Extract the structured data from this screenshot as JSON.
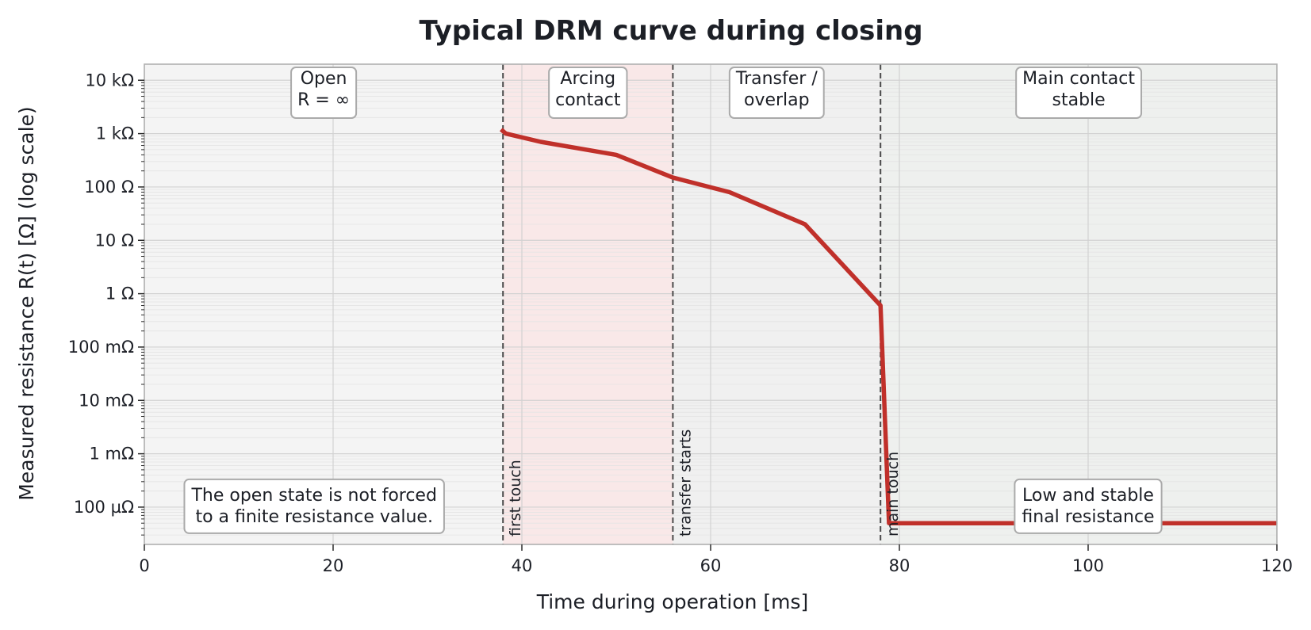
{
  "chart_data": {
    "type": "line",
    "title": "Typical DRM curve during closing",
    "xlabel": "Time during operation [ms]",
    "ylabel": "Measured resistance R(t) [Ω] (log scale)",
    "xlim": [
      0,
      120
    ],
    "ylim": [
      2e-05,
      20000
    ],
    "yscale": "log",
    "grid": true,
    "x_ticks": [
      {
        "value": 0,
        "label": "0"
      },
      {
        "value": 20,
        "label": "20"
      },
      {
        "value": 40,
        "label": "40"
      },
      {
        "value": 60,
        "label": "60"
      },
      {
        "value": 80,
        "label": "80"
      },
      {
        "value": 100,
        "label": "100"
      },
      {
        "value": 120,
        "label": "120"
      }
    ],
    "y_ticks": [
      {
        "value": 0.0001,
        "label": "100 µΩ"
      },
      {
        "value": 0.001,
        "label": "1 mΩ"
      },
      {
        "value": 0.01,
        "label": "10 mΩ"
      },
      {
        "value": 0.1,
        "label": "100 mΩ"
      },
      {
        "value": 1,
        "label": "1 Ω"
      },
      {
        "value": 10,
        "label": "10 Ω"
      },
      {
        "value": 100,
        "label": "100 Ω"
      },
      {
        "value": 1000,
        "label": "1 kΩ"
      },
      {
        "value": 10000,
        "label": "10 kΩ"
      }
    ],
    "series": [
      {
        "color": "#c0302a",
        "x": [
          37.8,
          38.3,
          42,
          50,
          56,
          62,
          70,
          78,
          78.9,
          120
        ],
        "y": [
          1200,
          1000,
          700,
          400,
          150,
          80,
          20,
          0.6,
          5e-05,
          5e-05
        ]
      }
    ],
    "regions": [
      {
        "x0": 0,
        "x1": 38,
        "color": "#f4f4f4",
        "lines": [
          "Open",
          "R = ∞"
        ]
      },
      {
        "x0": 38,
        "x1": 56,
        "color": "#f9e8e8",
        "lines": [
          "Arcing",
          "contact"
        ]
      },
      {
        "x0": 56,
        "x1": 78,
        "color": "#f0f0f0",
        "lines": [
          "Transfer /",
          "overlap"
        ]
      },
      {
        "x0": 78,
        "x1": 120,
        "color": "#eef0ee",
        "lines": [
          "Main contact",
          "stable"
        ]
      }
    ],
    "markers": [
      {
        "x": 38,
        "label": "first touch"
      },
      {
        "x": 56,
        "label": "transfer starts"
      },
      {
        "x": 78,
        "label": "main touch"
      }
    ],
    "annotations": [
      {
        "x": 18,
        "y": 0.0001,
        "lines": [
          "The open state is not forced",
          "to a finite resistance value."
        ]
      },
      {
        "x": 100,
        "y": 0.0001,
        "lines": [
          "Low and stable",
          "final resistance"
        ]
      }
    ]
  }
}
